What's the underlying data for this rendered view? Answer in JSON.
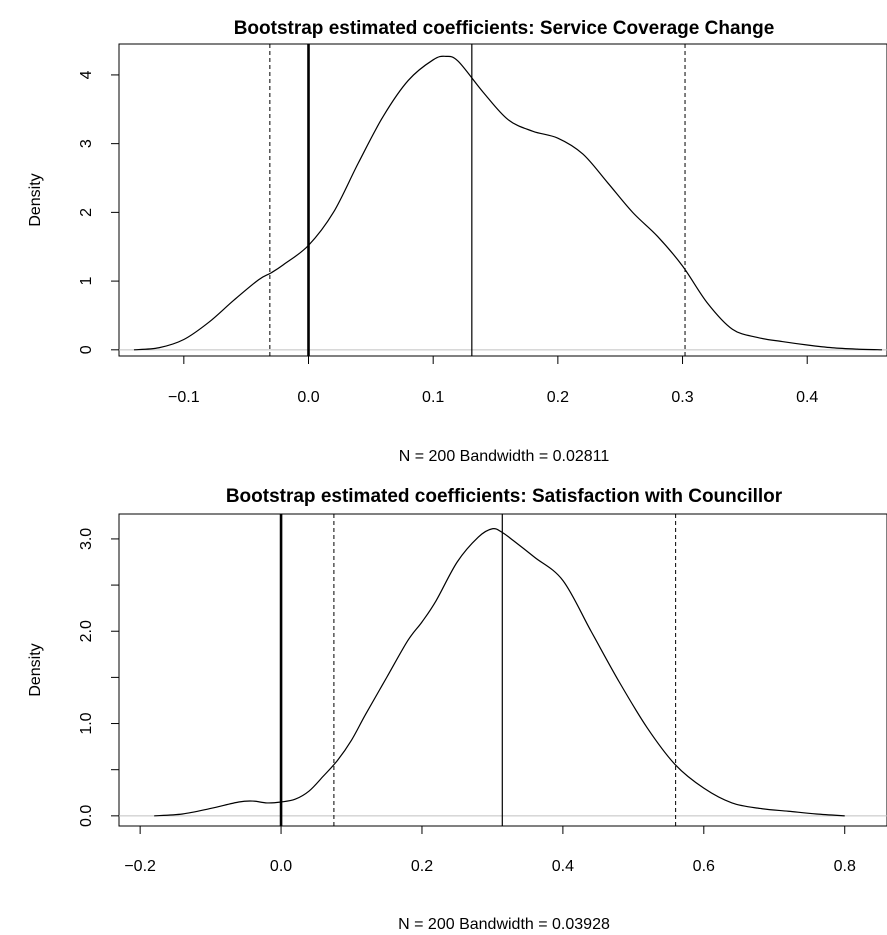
{
  "chart_data": [
    {
      "type": "density",
      "title": "Bootstrap estimated coefficients: Service Coverage Change",
      "xlabel": "N = 200   Bandwidth = 0.02811",
      "ylabel": "Density",
      "xlim": [
        -0.152,
        0.464
      ],
      "ylim": [
        -0.09,
        4.45
      ],
      "x_ticks": [
        "-0.1",
        "0.0",
        "0.1",
        "0.2",
        "0.3",
        "0.4"
      ],
      "x_tick_values": [
        -0.1,
        0.0,
        0.1,
        0.2,
        0.3,
        0.4
      ],
      "y_ticks": [
        "0",
        "1",
        "2",
        "3",
        "4"
      ],
      "y_tick_values": [
        0,
        1,
        2,
        3,
        4
      ],
      "grid": false,
      "zero_line_color": "#c0c0c0",
      "reference_lines": {
        "zero": 0.0,
        "estimate": 0.131,
        "ci_lower": -0.031,
        "ci_upper": 0.302
      },
      "density": {
        "x": [
          -0.14,
          -0.12,
          -0.1,
          -0.08,
          -0.06,
          -0.04,
          -0.03,
          -0.02,
          0.0,
          0.02,
          0.04,
          0.06,
          0.08,
          0.1,
          0.11,
          0.12,
          0.14,
          0.16,
          0.18,
          0.2,
          0.22,
          0.24,
          0.26,
          0.28,
          0.3,
          0.32,
          0.34,
          0.36,
          0.38,
          0.4,
          0.42,
          0.44,
          0.46
        ],
        "y": [
          0.0,
          0.03,
          0.15,
          0.4,
          0.72,
          1.02,
          1.12,
          1.24,
          1.52,
          2.0,
          2.72,
          3.4,
          3.92,
          4.22,
          4.27,
          4.2,
          3.75,
          3.35,
          3.18,
          3.08,
          2.85,
          2.43,
          2.0,
          1.65,
          1.22,
          0.68,
          0.3,
          0.18,
          0.12,
          0.07,
          0.03,
          0.01,
          0.0
        ]
      }
    },
    {
      "type": "density",
      "title": "Bootstrap estimated coefficients: Satisfaction with Councillor",
      "xlabel": "N = 200   Bandwidth = 0.03928",
      "ylabel": "Density",
      "xlim": [
        -0.23,
        0.86
      ],
      "ylim": [
        -0.11,
        3.27
      ],
      "x_ticks": [
        "-0.2",
        "0.0",
        "0.2",
        "0.4",
        "0.6",
        "0.8"
      ],
      "x_tick_values": [
        -0.2,
        0.0,
        0.2,
        0.4,
        0.6,
        0.8
      ],
      "y_ticks": [
        "0.0",
        "1.0",
        "2.0",
        "3.0"
      ],
      "y_tick_values": [
        0.0,
        1.0,
        2.0,
        3.0
      ],
      "y_minor_ticks": [
        0.5,
        1.5,
        2.5
      ],
      "grid": false,
      "zero_line_color": "#c0c0c0",
      "reference_lines": {
        "zero": 0.0,
        "estimate": 0.314,
        "ci_lower": 0.075,
        "ci_upper": 0.56
      },
      "density": {
        "x": [
          -0.18,
          -0.14,
          -0.1,
          -0.06,
          -0.04,
          -0.02,
          0.0,
          0.02,
          0.04,
          0.06,
          0.08,
          0.1,
          0.12,
          0.15,
          0.18,
          0.2,
          0.22,
          0.25,
          0.28,
          0.3,
          0.314,
          0.33,
          0.36,
          0.4,
          0.44,
          0.48,
          0.52,
          0.56,
          0.6,
          0.64,
          0.68,
          0.72,
          0.76,
          0.8
        ],
        "y": [
          0.0,
          0.02,
          0.08,
          0.15,
          0.16,
          0.14,
          0.15,
          0.18,
          0.27,
          0.43,
          0.6,
          0.82,
          1.1,
          1.5,
          1.9,
          2.1,
          2.33,
          2.75,
          3.02,
          3.11,
          3.07,
          2.98,
          2.8,
          2.55,
          2.0,
          1.45,
          0.95,
          0.55,
          0.3,
          0.14,
          0.08,
          0.05,
          0.02,
          0.0
        ]
      }
    }
  ]
}
